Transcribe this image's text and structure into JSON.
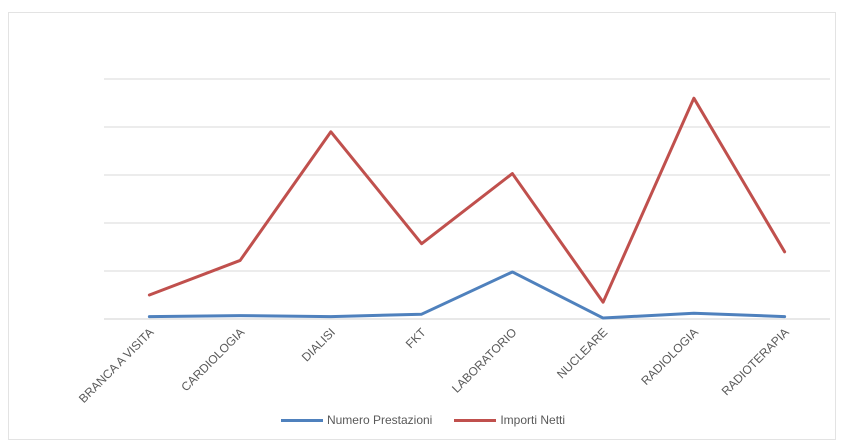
{
  "chart_data": {
    "type": "line",
    "title": "",
    "xlabel": "",
    "ylabel": "",
    "categories": [
      "BRANCA A VISITA",
      "CARDIOLOGIA",
      "DIALISI",
      "FKT",
      "LABORATORIO",
      "NUCLEARE",
      "RADIOLOGIA",
      "RADIOTERAPIA"
    ],
    "ylim": [
      0,
      5
    ],
    "y_tick_labels_visible": false,
    "grid": true,
    "legend_position": "bottom",
    "series": [
      {
        "name": "Numero Prestazioni",
        "color": "#4f81bd",
        "values": [
          0.05,
          0.07,
          0.05,
          0.1,
          0.98,
          0.02,
          0.12,
          0.05
        ]
      },
      {
        "name": "Importi Netti",
        "color": "#c0504d",
        "values": [
          0.5,
          1.22,
          3.9,
          1.57,
          3.03,
          0.35,
          4.6,
          1.4
        ]
      }
    ]
  }
}
